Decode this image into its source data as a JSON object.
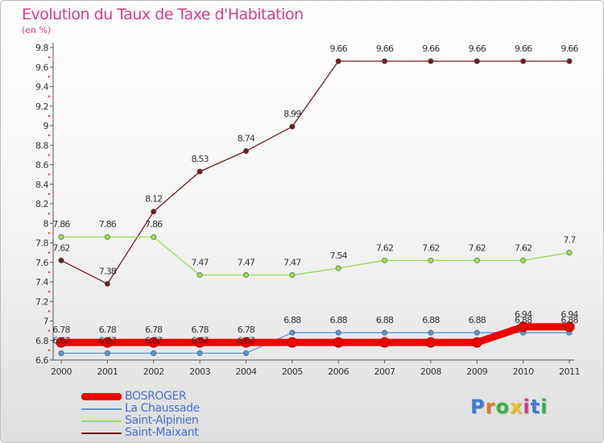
{
  "header": {
    "title": "Evolution du Taux de Taxe d'Habitation",
    "subtitle": "(en %)"
  },
  "logo": {
    "text": "Proxiti",
    "colors": [
      "#3a7dd8",
      "#e87d1e",
      "#3ab24a",
      "#e8c21e",
      "#d43a8a",
      "#3a7dd8",
      "#3ab24a"
    ]
  },
  "chart_data": {
    "type": "line",
    "title": "Evolution du Taux de Taxe d'Habitation",
    "ylabel": "(en %)",
    "xlabel": "",
    "x": [
      "2000",
      "2001",
      "2002",
      "2003",
      "2004",
      "2005",
      "2006",
      "2007",
      "2008",
      "2009",
      "2010",
      "2011"
    ],
    "ylim": [
      6.6,
      9.8
    ],
    "yticks": [
      "6.6",
      "6.8",
      "7",
      "7.2",
      "7.4",
      "7.6",
      "7.8",
      "8",
      "8.2",
      "8.4",
      "8.6",
      "8.8",
      "9",
      "9.2",
      "9.4",
      "9.6",
      "9.8"
    ],
    "grid": false,
    "legend_position": "bottom-left",
    "series": [
      {
        "name": "BOSROGER",
        "color": "#ee0000",
        "style": "thick",
        "values": [
          6.78,
          6.78,
          6.78,
          6.78,
          6.78,
          6.78,
          6.78,
          6.78,
          6.78,
          6.78,
          6.94,
          6.94
        ],
        "labels": [
          "6.78",
          "6.78",
          "6.78",
          "6.78",
          "6.78",
          "",
          "",
          "",
          "",
          "",
          "6.94",
          "6.94"
        ]
      },
      {
        "name": "La Chaussade",
        "color": "#5b96cf",
        "style": "thin",
        "values": [
          6.67,
          6.67,
          6.67,
          6.67,
          6.67,
          6.88,
          6.88,
          6.88,
          6.88,
          6.88,
          6.88,
          6.88
        ],
        "labels": [
          "6.67",
          "6.67",
          "6.67",
          "6.67",
          "6.67",
          "6.88",
          "6.88",
          "6.88",
          "6.88",
          "6.88",
          "6.88",
          "6.88"
        ]
      },
      {
        "name": "Saint-Alpinien",
        "color": "#99dd55",
        "style": "thin",
        "values": [
          7.86,
          7.86,
          7.86,
          7.47,
          7.47,
          7.47,
          7.54,
          7.62,
          7.62,
          7.62,
          7.62,
          7.7
        ],
        "labels": [
          "7.86",
          "7.86",
          "7.86",
          "7.47",
          "7.47",
          "7.47",
          "7.54",
          "7.62",
          "7.62",
          "7.62",
          "7.62",
          "7.7"
        ]
      },
      {
        "name": "Saint-Maixant",
        "color": "#6b1e1e",
        "style": "thin",
        "values": [
          7.62,
          7.38,
          8.12,
          8.53,
          8.74,
          8.99,
          9.66,
          9.66,
          9.66,
          9.66,
          9.66,
          9.66
        ],
        "labels": [
          "7.62",
          "7.38",
          "8.12",
          "8.53",
          "8.74",
          "8.99",
          "9.66",
          "9.66",
          "9.66",
          "9.66",
          "9.66",
          "9.66"
        ]
      }
    ]
  }
}
